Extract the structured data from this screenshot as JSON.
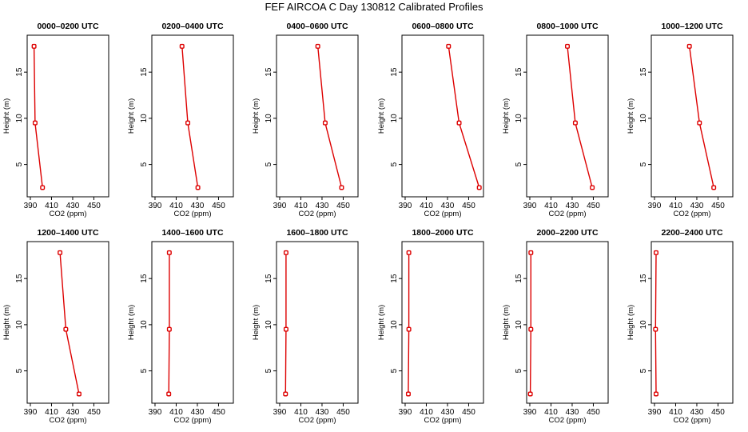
{
  "chart_data": {
    "title": "FEF AIRCOA C  Day 130812  Calibrated Profiles",
    "type": "line",
    "xlabel": "CO2 (ppm)",
    "ylabel": "Height (m)",
    "xlim": [
      387,
      464
    ],
    "ylim": [
      1.5,
      19
    ],
    "xticks": [
      390,
      410,
      430,
      450
    ],
    "yticks": [
      5,
      10,
      15
    ],
    "line_color": "#dd0000",
    "grid": false,
    "panels": [
      {
        "title": "0000–0200 UTC",
        "points": [
          {
            "x": 393.5,
            "y": 17.8
          },
          {
            "x": 394.5,
            "y": 9.5
          },
          {
            "x": 401.5,
            "y": 2.5
          }
        ]
      },
      {
        "title": "0200–0400 UTC",
        "points": [
          {
            "x": 415.5,
            "y": 17.8
          },
          {
            "x": 421,
            "y": 9.5
          },
          {
            "x": 430.5,
            "y": 2.5
          }
        ]
      },
      {
        "title": "0400–0600 UTC",
        "points": [
          {
            "x": 426,
            "y": 17.8
          },
          {
            "x": 433,
            "y": 9.5
          },
          {
            "x": 448.5,
            "y": 2.5
          }
        ]
      },
      {
        "title": "0600–0800 UTC",
        "points": [
          {
            "x": 431,
            "y": 17.8
          },
          {
            "x": 441,
            "y": 9.5
          },
          {
            "x": 460,
            "y": 2.5
          }
        ]
      },
      {
        "title": "0800–1000 UTC",
        "points": [
          {
            "x": 425.5,
            "y": 17.8
          },
          {
            "x": 433,
            "y": 9.5
          },
          {
            "x": 449,
            "y": 2.5
          }
        ]
      },
      {
        "title": "1000–1200 UTC",
        "points": [
          {
            "x": 423,
            "y": 17.8
          },
          {
            "x": 432.5,
            "y": 9.5
          },
          {
            "x": 446,
            "y": 2.5
          }
        ]
      },
      {
        "title": "1200–1400 UTC",
        "points": [
          {
            "x": 418,
            "y": 17.8
          },
          {
            "x": 423.5,
            "y": 9.5
          },
          {
            "x": 436,
            "y": 2.5
          }
        ]
      },
      {
        "title": "1400–1600 UTC",
        "points": [
          {
            "x": 403.5,
            "y": 17.8
          },
          {
            "x": 403.5,
            "y": 9.5
          },
          {
            "x": 403,
            "y": 2.5
          }
        ]
      },
      {
        "title": "1600–1800 UTC",
        "points": [
          {
            "x": 396,
            "y": 17.8
          },
          {
            "x": 396,
            "y": 9.5
          },
          {
            "x": 395.5,
            "y": 2.5
          }
        ]
      },
      {
        "title": "1800–2000 UTC",
        "points": [
          {
            "x": 393.5,
            "y": 17.8
          },
          {
            "x": 393.5,
            "y": 9.5
          },
          {
            "x": 393,
            "y": 2.5
          }
        ]
      },
      {
        "title": "2000–2200 UTC",
        "points": [
          {
            "x": 391,
            "y": 17.8
          },
          {
            "x": 391,
            "y": 9.5
          },
          {
            "x": 390.5,
            "y": 2.5
          }
        ]
      },
      {
        "title": "2200–2400 UTC",
        "points": [
          {
            "x": 391.5,
            "y": 17.8
          },
          {
            "x": 391,
            "y": 9.5
          },
          {
            "x": 391.5,
            "y": 2.5
          }
        ]
      }
    ]
  }
}
